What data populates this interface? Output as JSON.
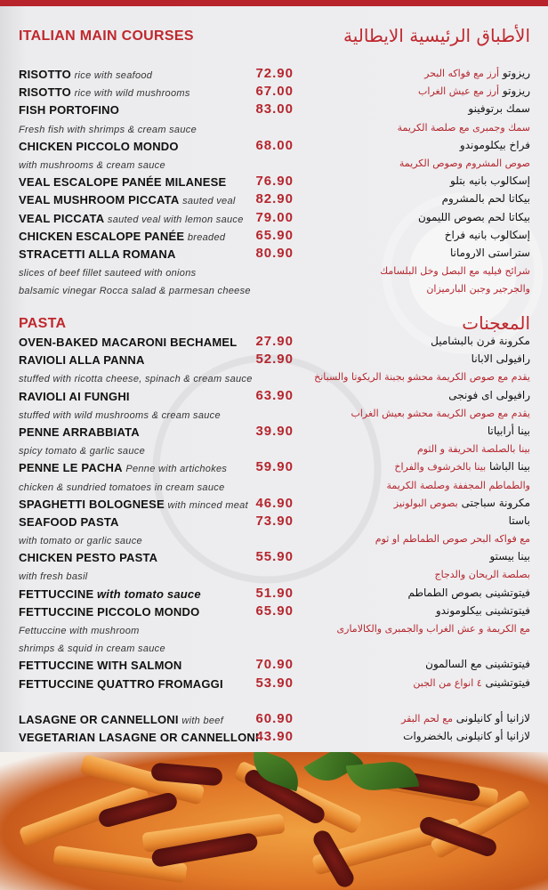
{
  "main": {
    "title_en": "ITALIAN MAIN COURSES",
    "title_ar": "الأطباق الرئيسية الايطالية",
    "rows": [
      {
        "en": "RISOTTO",
        "en_note": "rice with seafood",
        "price": "72.90",
        "ar": "ريزوتو",
        "ar_note": "أرز مع فواكه البحر"
      },
      {
        "en": "RISOTTO",
        "en_note": "rice with wild mushrooms",
        "price": "67.00",
        "ar": "ريزوتو",
        "ar_note": "أرز مع عيش الغراب"
      },
      {
        "en": "FISH PORTOFINO",
        "price": "83.00",
        "ar": "سمك برتوفينو"
      },
      {
        "desc": "Fresh fish with shrimps & cream sauce",
        "ar_note": "سمك وجمبرى مع صلصة الكريمة"
      },
      {
        "en": "CHICKEN PICCOLO MONDO",
        "price": "68.00",
        "ar": "فراخ بيكلوموندو"
      },
      {
        "desc": "with mushrooms & cream sauce",
        "ar_note": "صوص المشروم وصوص الكريمة"
      },
      {
        "en": "VEAL ESCALOPE PANÉE MILANESE",
        "price": "76.90",
        "ar": "إسكالوب بانيه بتلو"
      },
      {
        "en": "VEAL MUSHROOM PICCATA",
        "en_note": "sauted veal",
        "price": "82.90",
        "ar": "بيكاتا لحم بالمشروم"
      },
      {
        "en": "VEAL PICCATA",
        "en_note": "sauted veal with lemon sauce",
        "price": "79.00",
        "ar": "بيكاتا لحم بصوص الليمون"
      },
      {
        "en": "CHICKEN ESCALOPE PANÉE",
        "en_note": "breaded",
        "price": "65.90",
        "ar": "إسكالوب بانيه فراخ"
      },
      {
        "en": "STRACETTI ALLA ROMANA",
        "price": "80.90",
        "ar": "ستراستى الارومانا"
      },
      {
        "desc": "slices of beef fillet sauteed with onions",
        "ar_note": "شرائح فيليه مع البصل وخل البلسامك"
      },
      {
        "desc": "balsamic vinegar Rocca salad & parmesan cheese",
        "ar_note": "والجرجير وجبن البارميزان"
      }
    ]
  },
  "pasta": {
    "title_en": "PASTA",
    "title_ar": "المعجنات",
    "rows": [
      {
        "en": "OVEN-BAKED MACARONI BECHAMEL",
        "price": "27.90",
        "ar": "مكرونة فرن بالبشاميل"
      },
      {
        "en": "RAVIOLI ALLA PANNA",
        "price": "52.90",
        "ar": "رافيولى الابانا"
      },
      {
        "desc": "stuffed with ricotta cheese, spinach & cream sauce",
        "ar_note": "يقدم مع صوص الكريمة محشو بجبنة الريكوتا والسبانخ"
      },
      {
        "en": "RAVIOLI AI FUNGHI",
        "price": "63.90",
        "ar": "رافيولى اى فونجى"
      },
      {
        "desc": "stuffed with wild mushrooms & cream sauce",
        "ar_note": "يقدم مع صوص الكريمة محشو بعيش الغراب"
      },
      {
        "en": "PENNE ARRABBIATA",
        "price": "39.90",
        "ar": "بينا أرابياتا"
      },
      {
        "desc": "spicy tomato & garlic sauce",
        "ar_note": "بينا بالصلصة الحريفة و الثوم"
      },
      {
        "en": "PENNE LE PACHA",
        "en_note": "Penne with artichokes",
        "price": "59.90",
        "ar": "بينا الباشا",
        "ar_note": "بينا بالخرشوف والفراخ"
      },
      {
        "desc": "chicken & sundried tomatoes in cream sauce",
        "ar_note": "والطماطم المجففة وصلصة الكريمة"
      },
      {
        "en": "SPAGHETTI BOLOGNESE",
        "en_note": "with minced meat",
        "price": "46.90",
        "ar": "مكرونة سباجتى",
        "ar_note": "بصوص البولونيز"
      },
      {
        "en": "SEAFOOD PASTA",
        "price": "73.90",
        "ar": "باستا"
      },
      {
        "desc": "with tomato or garlic sauce",
        "ar_note": "مع فواكه البحر صوص الطماطم او ثوم"
      },
      {
        "en": "CHICKEN PESTO PASTA",
        "price": "55.90",
        "ar": "بينا بيستو"
      },
      {
        "desc": "with fresh basil",
        "ar_note": "بصلصة الريحان والدجاج"
      },
      {
        "en": "FETTUCCINE",
        "en_note_big": "with tomato sauce",
        "price": "51.90",
        "ar": "فيتوتشينى بصوص الطماطم"
      },
      {
        "en": "FETTUCCINE PICCOLO MONDO",
        "price": "65.90",
        "ar": "فيتوتشينى بيكلوموندو"
      },
      {
        "desc": "Fettuccine with mushroom",
        "ar_note": "مع الكريمة و عش الغراب والجمبرى والكالامارى"
      },
      {
        "desc": " shrimps & squid in cream sauce"
      },
      {
        "en": "FETTUCCINE WITH SALMON",
        "price": "70.90",
        "ar": "فيتوتشينى مع السالمون"
      },
      {
        "en": "FETTUCCINE QUATTRO FROMAGGI",
        "price": "53.90",
        "ar": "فيتوتشينى",
        "ar_note": "٤ انواع من الجبن"
      },
      {
        "spacer": true
      },
      {
        "en": "LASAGNE OR CANNELLONI",
        "en_note": "with beef",
        "price": "60.90",
        "ar": "لازانيا أو كانيلونى",
        "ar_note": "مع لحم البقر"
      },
      {
        "en": "VEGETARIAN LASAGNE OR CANNELLONI",
        "price": "43.90",
        "ar": "لازانيا أو كانيلونى بالخضروات"
      }
    ]
  },
  "colors": {
    "accent": "#c0272d",
    "price": "#b5262e",
    "background": "#e9e9eb"
  }
}
